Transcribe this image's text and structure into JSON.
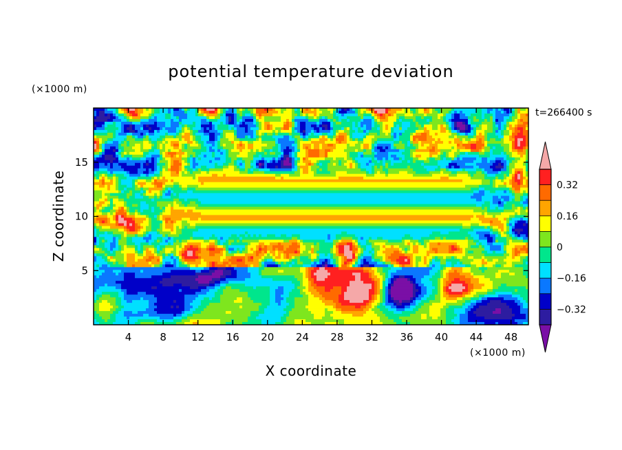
{
  "chart_data": {
    "type": "heatmap",
    "title": "potential temperature deviation",
    "xlabel": "X coordinate",
    "ylabel": "Z coordinate",
    "x_unit": "(×1000 m)",
    "y_unit": "(×1000 m)",
    "time_label": "t=266400 s",
    "xlim": [
      0,
      50
    ],
    "ylim": [
      0,
      20
    ],
    "x_ticks": [
      4,
      8,
      12,
      16,
      20,
      24,
      28,
      32,
      36,
      40,
      44,
      48
    ],
    "y_ticks": [
      5,
      10,
      15
    ],
    "colorbar": {
      "levels": [
        -0.4,
        -0.32,
        -0.24,
        -0.16,
        -0.08,
        0,
        0.08,
        0.16,
        0.24,
        0.32,
        0.4
      ],
      "tick_values": [
        -0.32,
        -0.16,
        0,
        0.16,
        0.32
      ],
      "tick_labels": [
        "−0.32",
        "−0.16",
        "0",
        "0.16",
        "0.32"
      ],
      "colors": [
        "#7a0fa6",
        "#2d1ca0",
        "#0000c8",
        "#0a78ff",
        "#00e0ff",
        "#00e68c",
        "#7ee61e",
        "#ffff00",
        "#ffa500",
        "#ff6a00",
        "#ff2020",
        "#f5a8a8"
      ],
      "extend": "both"
    },
    "grid": false,
    "legend": "right"
  }
}
